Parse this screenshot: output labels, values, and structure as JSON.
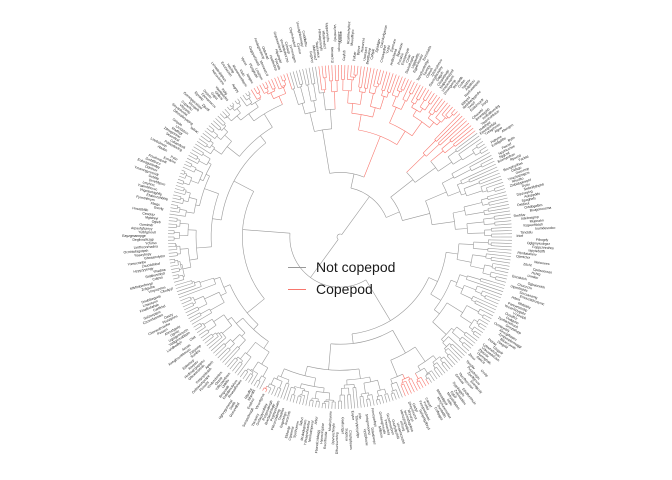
{
  "legend": {
    "items": [
      {
        "label": "Not copepod",
        "color": "#999999"
      },
      {
        "label": "Copepod",
        "color": "#F8766D"
      }
    ]
  },
  "tree": {
    "layout": "circular",
    "group_colors": {
      "not_copepod": "#999999",
      "copepod": "#F8766D"
    }
  }
}
